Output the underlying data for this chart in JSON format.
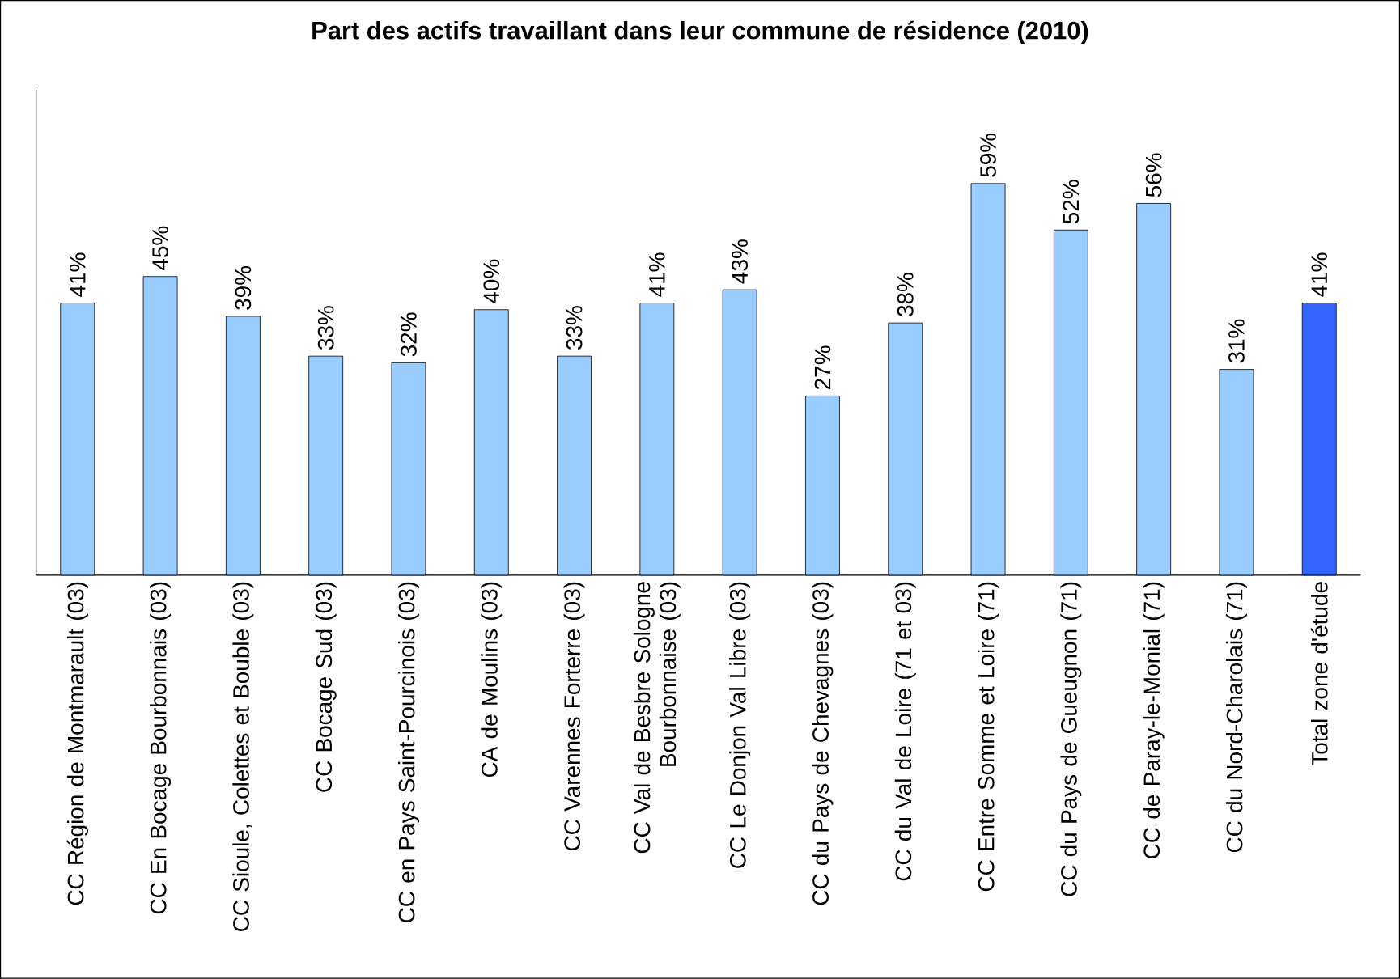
{
  "chart_data": {
    "type": "bar",
    "title": "Part des actifs travaillant dans leur commune de résidence (2010)",
    "categories": [
      "CC Région de Montmarault (03)",
      "CC En Bocage Bourbonnais (03)",
      "CC Sioule, Colettes et Bouble (03)",
      "CC Bocage Sud (03)",
      "CC en Pays Saint-Pourcinois (03)",
      "CA de Moulins (03)",
      "CC Varennes Forterre (03)",
      "CC Val de Besbre Sologne Bourbonnaise (03)",
      "CC Le Donjon Val Libre (03)",
      "CC du Pays de Chevagnes (03)",
      "CC du Val de Loire (71 et 03)",
      "CC Entre Somme et Loire (71)",
      "CC du Pays de Gueugnon (71)",
      "CC de Paray-le-Monial (71)",
      "CC du Nord-Charolais (71)",
      "Total zone d'étude"
    ],
    "values": [
      41,
      45,
      39,
      33,
      32,
      40,
      33,
      41,
      43,
      27,
      38,
      59,
      52,
      56,
      31,
      41
    ],
    "value_labels": [
      "41%",
      "45%",
      "39%",
      "33%",
      "32%",
      "40%",
      "33%",
      "41%",
      "43%",
      "27%",
      "38%",
      "59%",
      "52%",
      "56%",
      "31%",
      "41%"
    ],
    "colors": [
      "#99ccff",
      "#99ccff",
      "#99ccff",
      "#99ccff",
      "#99ccff",
      "#99ccff",
      "#99ccff",
      "#99ccff",
      "#99ccff",
      "#99ccff",
      "#99ccff",
      "#99ccff",
      "#99ccff",
      "#99ccff",
      "#99ccff",
      "#3366ff"
    ],
    "tick_labels": "x",
    "grid": false
  }
}
